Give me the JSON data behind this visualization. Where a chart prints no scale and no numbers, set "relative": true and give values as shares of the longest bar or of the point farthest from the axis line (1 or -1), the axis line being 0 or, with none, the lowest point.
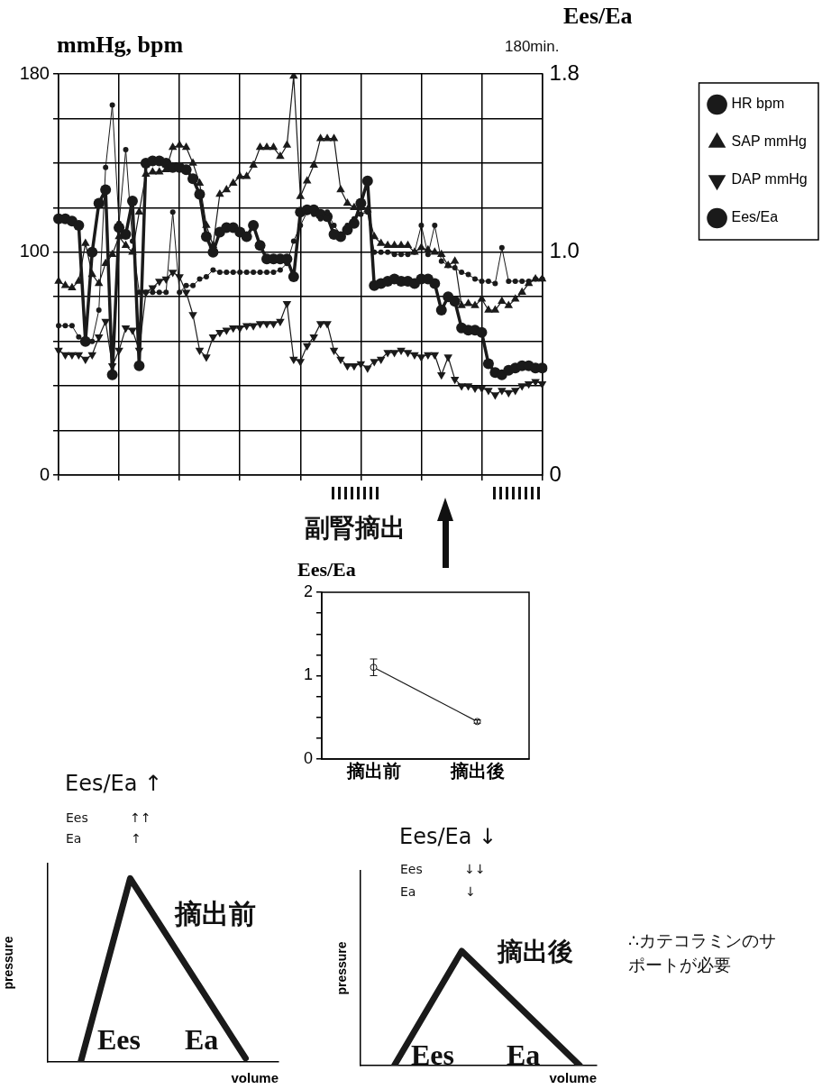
{
  "chart_data": [
    {
      "type": "line",
      "categories": [
        null,
        null,
        null,
        null,
        null,
        null,
        null,
        null,
        null,
        null,
        null,
        null,
        null,
        null,
        null,
        null,
        null,
        null,
        null,
        null,
        null,
        null,
        null,
        null,
        null,
        null,
        null,
        null,
        null,
        null,
        null,
        null,
        null,
        null,
        null,
        null,
        null,
        null,
        null,
        null,
        null,
        null,
        null,
        null,
        null,
        null,
        null,
        null,
        null,
        null,
        null,
        null,
        null,
        null,
        null,
        null,
        null,
        null,
        null,
        null,
        null,
        null,
        null,
        null,
        null,
        null,
        null,
        null,
        null,
        null,
        null,
        null,
        null
      ],
      "ylabel": "mmHg, bpm",
      "y2label": "Ees/Ea",
      "annotations": [
        "180min.",
        "副腎摘出"
      ],
      "series": [
        {
          "name": "HR bpm",
          "color": "#1a1a1a",
          "marker": "circle",
          "values": [
            67,
            67,
            67,
            62,
            60,
            60,
            74,
            138,
            166,
            113,
            146,
            105,
            82,
            82,
            82,
            82,
            82,
            118,
            82,
            85,
            85,
            88,
            89,
            92,
            91,
            91,
            91,
            91,
            91,
            91,
            91,
            91,
            91,
            92,
            95,
            105,
            112,
            118,
            117,
            115,
            118,
            112,
            108,
            112,
            115,
            117,
            118,
            100,
            100,
            100,
            99,
            99,
            99,
            100,
            112,
            99,
            112,
            96,
            94,
            93,
            91,
            90,
            88,
            87,
            87,
            86,
            102,
            87,
            87,
            87,
            87,
            88,
            88
          ]
        },
        {
          "name": "SAP mmHg",
          "color": "#1a1a1a",
          "marker": "triangle",
          "values": [
            87,
            85,
            84,
            87,
            104,
            90,
            86,
            95,
            99,
            107,
            103,
            100,
            118,
            135,
            136,
            136,
            137,
            147,
            148,
            147,
            140,
            131,
            112,
            103,
            126,
            128,
            131,
            134,
            134,
            139,
            147,
            147,
            147,
            143,
            148,
            179,
            125,
            132,
            139,
            151,
            151,
            151,
            128,
            122,
            120,
            120,
            119,
            107,
            104,
            103,
            103,
            103,
            103,
            100,
            102,
            101,
            100,
            99,
            94,
            96,
            76,
            77,
            76,
            79,
            74,
            74,
            78,
            76,
            79,
            82,
            86,
            88,
            88
          ]
        },
        {
          "name": "DAP mmHg",
          "color": "#1a1a1a",
          "marker": "triangle-down",
          "values": [
            56,
            54,
            54,
            54,
            52,
            54,
            62,
            69,
            49,
            56,
            66,
            65,
            56,
            82,
            84,
            87,
            88,
            91,
            89,
            82,
            72,
            56,
            53,
            62,
            64,
            65,
            66,
            66,
            67,
            67,
            68,
            68,
            68,
            69,
            77,
            52,
            51,
            58,
            62,
            68,
            68,
            56,
            52,
            49,
            49,
            50,
            48,
            51,
            52,
            55,
            55,
            56,
            55,
            54,
            53,
            54,
            54,
            45,
            53,
            43,
            40,
            40,
            39,
            39,
            38,
            36,
            38,
            37,
            38,
            40,
            41,
            42,
            41
          ]
        },
        {
          "name": "Ees/Ea",
          "color": "#1a1a1a",
          "marker": "circle",
          "axis": "y2",
          "values": [
            1.15,
            1.15,
            1.14,
            1.12,
            0.6,
            1.0,
            1.22,
            1.28,
            0.45,
            1.11,
            1.08,
            1.23,
            0.49,
            1.4,
            1.41,
            1.41,
            1.4,
            1.38,
            1.38,
            1.37,
            1.33,
            1.26,
            1.07,
            1.0,
            1.09,
            1.11,
            1.11,
            1.09,
            1.07,
            1.12,
            1.03,
            0.97,
            0.97,
            0.97,
            0.97,
            0.89,
            1.18,
            1.19,
            1.19,
            1.17,
            1.16,
            1.08,
            1.07,
            1.1,
            1.13,
            1.22,
            1.32,
            0.85,
            0.86,
            0.87,
            0.88,
            0.87,
            0.87,
            0.86,
            0.88,
            0.88,
            0.86,
            0.74,
            0.8,
            0.78,
            0.66,
            0.65,
            0.65,
            0.64,
            0.5,
            0.46,
            0.45,
            0.47,
            0.48,
            0.49,
            0.49,
            0.48,
            0.48
          ]
        }
      ],
      "ylim": [
        0,
        180
      ],
      "yticks": [
        0,
        {
          "value": 20,
          "label": null
        },
        {
          "value": 40,
          "label": null
        },
        {
          "value": 60,
          "label": null
        },
        {
          "value": 80,
          "label": null
        },
        100,
        {
          "value": 120,
          "label": null
        },
        {
          "value": 140,
          "label": null
        },
        {
          "value": 160,
          "label": null
        },
        180
      ],
      "y2lim": [
        0,
        1.8
      ],
      "y2ticks": [
        0,
        {
          "value": 1,
          "label": "1.0"
        },
        1.8
      ],
      "grid": true,
      "legend": "right"
    },
    {
      "type": "line",
      "ylabel": "Ees/Ea",
      "categories": [
        "摘出前",
        "摘出後"
      ],
      "values": [
        1.1,
        0.45
      ],
      "errors": [
        0.1,
        0.02
      ],
      "color": "#1a1a1a",
      "marker": "circle",
      "ylim": [
        0,
        2
      ],
      "yticks": [
        0,
        {
          "value": 0.25,
          "label": null
        },
        {
          "value": 0.5,
          "label": null
        },
        {
          "value": 0.75,
          "label": null
        },
        1,
        {
          "value": 1.25,
          "label": null
        },
        {
          "value": 1.5,
          "label": null
        },
        {
          "value": 1.75,
          "label": null
        },
        2
      ]
    },
    {
      "type": "line",
      "relative": true,
      "title": "Ees/Ea ↑",
      "xlabel": "volume",
      "ylabel": "pressure",
      "categories": [
        null,
        null,
        null,
        null,
        null,
        null,
        null,
        null,
        null,
        null,
        null,
        null,
        null,
        null,
        null
      ],
      "values": [
        null,
        null,
        0,
        null,
        null,
        1,
        null,
        null,
        null,
        null,
        null,
        null,
        0.02,
        null,
        null
      ],
      "color": "#1a1a1a",
      "annotations": [
        "Ees ↑↑",
        "Ea ↑",
        "摘出前",
        "Ees",
        "Ea"
      ]
    },
    {
      "type": "line",
      "relative": true,
      "title": "Ees/Ea ↓",
      "xlabel": "volume",
      "ylabel": "pressure",
      "categories": [
        null,
        null,
        null,
        null,
        null,
        null,
        null,
        null,
        null,
        null,
        null,
        null,
        null,
        null,
        null
      ],
      "values": [
        null,
        null,
        0,
        null,
        null,
        null,
        1,
        null,
        null,
        null,
        null,
        null,
        null,
        0,
        null
      ],
      "color": "#1a1a1a",
      "annotations": [
        "Ees ↓↓",
        "Ea ↓",
        "摘出後",
        "Ees",
        "Ea",
        "∴カテコラミンのサポートが必要"
      ]
    }
  ]
}
